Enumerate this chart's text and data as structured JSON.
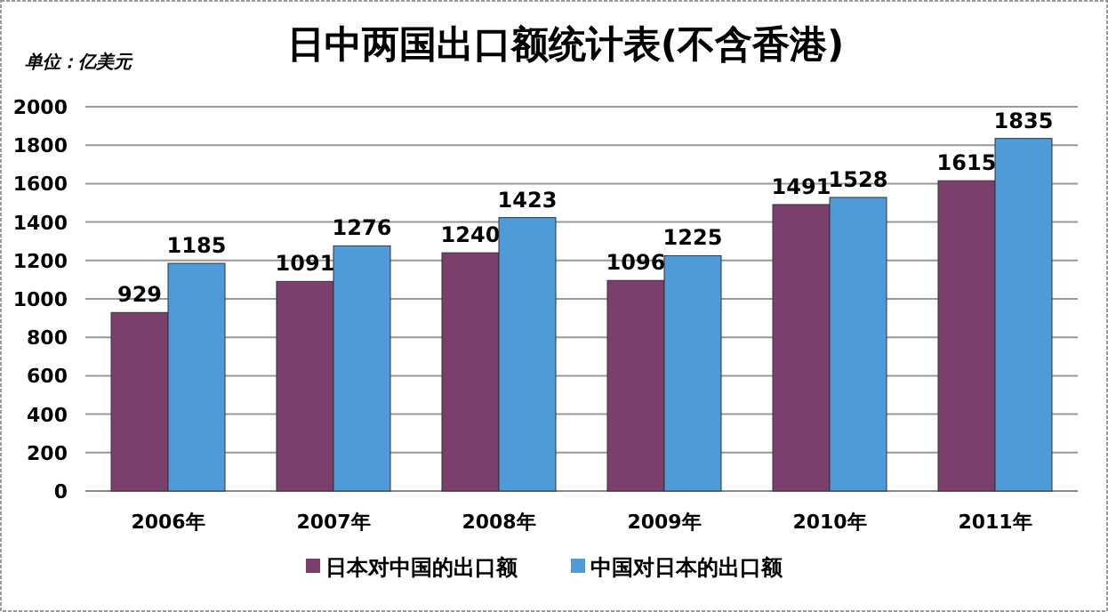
{
  "chart_data": {
    "type": "bar",
    "title": "日中两国出口额统计表(不含香港)",
    "ylabel": "单位：亿美元",
    "categories": [
      "2006年",
      "2007年",
      "2008年",
      "2009年",
      "2010年",
      "2011年"
    ],
    "series": [
      {
        "name": "日本对中国的出口额",
        "color": "#7b3f6e",
        "values": [
          929,
          1091,
          1240,
          1096,
          1491,
          1615
        ]
      },
      {
        "name": "中国对日本的出口额",
        "color": "#4f9bd9",
        "values": [
          1185,
          1276,
          1423,
          1225,
          1528,
          1835
        ]
      }
    ],
    "ylim": [
      0,
      2000
    ],
    "yticks": [
      0,
      200,
      400,
      600,
      800,
      1000,
      1200,
      1400,
      1600,
      1800,
      2000
    ],
    "grid": "y",
    "legend": "bottom",
    "data_labels": true
  }
}
